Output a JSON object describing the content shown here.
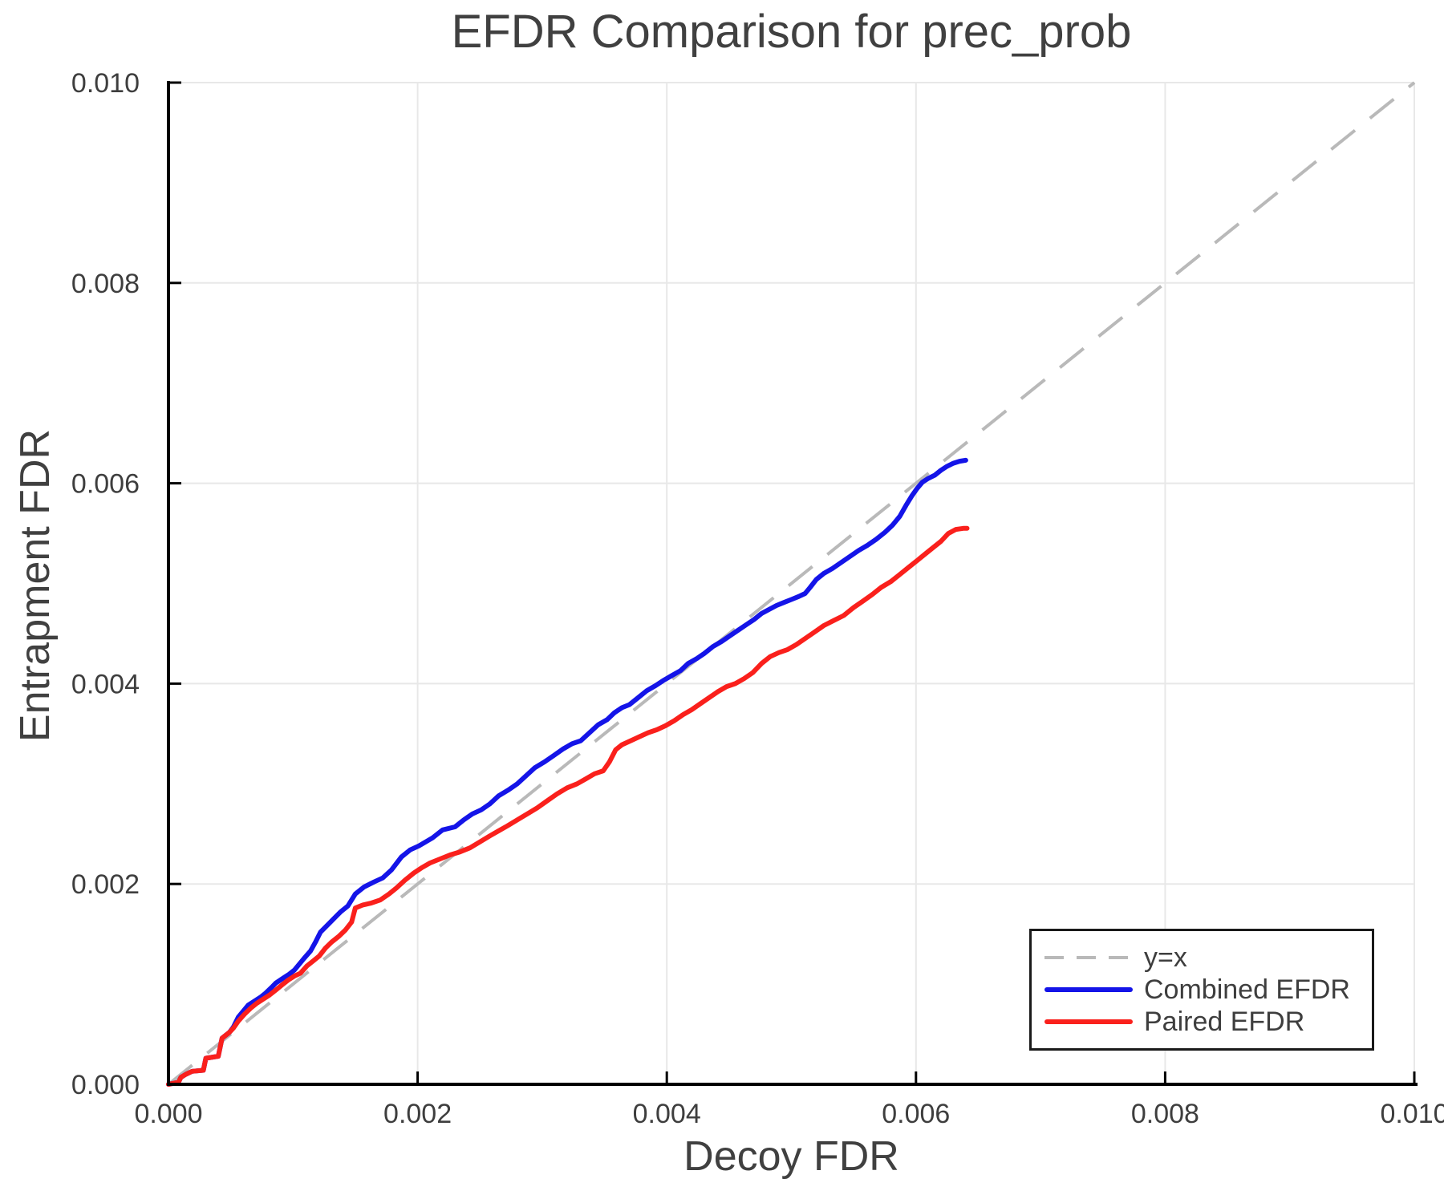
{
  "chart_data": {
    "type": "line",
    "title": "EFDR Comparison for prec_prob",
    "xlabel": "Decoy FDR",
    "ylabel": "Entrapment FDR",
    "xlim": [
      0.0,
      0.01
    ],
    "ylim": [
      0.0,
      0.01
    ],
    "grid": true,
    "background": "#ffffff",
    "axis_color": "#000000",
    "gridline_color": "#e8e8e8",
    "tick_label_color": "#3e3e3e",
    "x_ticks": {
      "values": [
        0.0,
        0.002,
        0.004,
        0.006,
        0.008,
        0.01
      ],
      "labels": [
        "0.000",
        "0.002",
        "0.004",
        "0.006",
        "0.008",
        "0.010"
      ]
    },
    "y_ticks": {
      "values": [
        0.0,
        0.002,
        0.004,
        0.006,
        0.008,
        0.01
      ],
      "labels": [
        "0.000",
        "0.002",
        "0.004",
        "0.006",
        "0.008",
        "0.010"
      ]
    },
    "legend": {
      "position": "lower right",
      "border_color": "#1a1a1a"
    },
    "reference_line": {
      "label": "y=x",
      "style": "dashed",
      "color": "#b9b9b9",
      "from": [
        0.0,
        0.0
      ],
      "to": [
        0.01,
        0.01
      ]
    },
    "series": [
      {
        "name": "Combined EFDR",
        "color": "#1414e8",
        "points": [
          [
            0.0,
            0.0
          ],
          [
            8e-05,
            2e-05
          ],
          [
            0.0001,
            7e-05
          ],
          [
            0.00014,
            0.0001
          ],
          [
            0.00019,
            0.00013
          ],
          [
            0.00028,
            0.00014
          ],
          [
            0.0003,
            0.00026
          ],
          [
            0.0004,
            0.00028
          ],
          [
            0.00043,
            0.00046
          ],
          [
            0.00049,
            0.00052
          ],
          [
            0.00052,
            0.00057
          ],
          [
            0.00056,
            0.00067
          ],
          [
            0.0006,
            0.00073
          ],
          [
            0.00064,
            0.00079
          ],
          [
            0.00069,
            0.00083
          ],
          [
            0.00074,
            0.00087
          ],
          [
            0.00078,
            0.00091
          ],
          [
            0.00083,
            0.00097
          ],
          [
            0.00086,
            0.00101
          ],
          [
            0.00092,
            0.00106
          ],
          [
            0.00097,
            0.0011
          ],
          [
            0.00101,
            0.00114
          ],
          [
            0.00105,
            0.0012
          ],
          [
            0.00109,
            0.00126
          ],
          [
            0.00114,
            0.00133
          ],
          [
            0.00118,
            0.00142
          ],
          [
            0.00122,
            0.00152
          ],
          [
            0.0013,
            0.00162
          ],
          [
            0.00138,
            0.00172
          ],
          [
            0.00144,
            0.00178
          ],
          [
            0.0015,
            0.0019
          ],
          [
            0.00157,
            0.00197
          ],
          [
            0.00165,
            0.00202
          ],
          [
            0.00172,
            0.00206
          ],
          [
            0.00179,
            0.00214
          ],
          [
            0.00187,
            0.00227
          ],
          [
            0.00194,
            0.00234
          ],
          [
            0.00201,
            0.00238
          ],
          [
            0.00212,
            0.00246
          ],
          [
            0.0022,
            0.00254
          ],
          [
            0.0023,
            0.00257
          ],
          [
            0.00237,
            0.00264
          ],
          [
            0.00244,
            0.0027
          ],
          [
            0.00251,
            0.00274
          ],
          [
            0.00258,
            0.0028
          ],
          [
            0.00265,
            0.00288
          ],
          [
            0.00273,
            0.00294
          ],
          [
            0.0028,
            0.003
          ],
          [
            0.00287,
            0.00308
          ],
          [
            0.00294,
            0.00316
          ],
          [
            0.00302,
            0.00322
          ],
          [
            0.00309,
            0.00328
          ],
          [
            0.00317,
            0.00335
          ],
          [
            0.00324,
            0.0034
          ],
          [
            0.00331,
            0.00343
          ],
          [
            0.00338,
            0.00351
          ],
          [
            0.00345,
            0.00359
          ],
          [
            0.00352,
            0.00364
          ],
          [
            0.00358,
            0.00371
          ],
          [
            0.00364,
            0.00376
          ],
          [
            0.0037,
            0.00379
          ],
          [
            0.00377,
            0.00386
          ],
          [
            0.00384,
            0.00393
          ],
          [
            0.00391,
            0.00398
          ],
          [
            0.00397,
            0.00403
          ],
          [
            0.00404,
            0.00408
          ],
          [
            0.00411,
            0.00413
          ],
          [
            0.00417,
            0.0042
          ],
          [
            0.00424,
            0.00425
          ],
          [
            0.0043,
            0.0043
          ],
          [
            0.00437,
            0.00437
          ],
          [
            0.00444,
            0.00442
          ],
          [
            0.00451,
            0.00448
          ],
          [
            0.00458,
            0.00454
          ],
          [
            0.00464,
            0.00459
          ],
          [
            0.0047,
            0.00464
          ],
          [
            0.00476,
            0.0047
          ],
          [
            0.00482,
            0.00474
          ],
          [
            0.00488,
            0.00478
          ],
          [
            0.00494,
            0.00481
          ],
          [
            0.005,
            0.00484
          ],
          [
            0.00506,
            0.00487
          ],
          [
            0.00511,
            0.0049
          ],
          [
            0.00515,
            0.00496
          ],
          [
            0.0052,
            0.00504
          ],
          [
            0.00526,
            0.0051
          ],
          [
            0.00533,
            0.00515
          ],
          [
            0.0054,
            0.00521
          ],
          [
            0.00547,
            0.00527
          ],
          [
            0.00554,
            0.00533
          ],
          [
            0.00561,
            0.00538
          ],
          [
            0.00568,
            0.00544
          ],
          [
            0.00575,
            0.00551
          ],
          [
            0.00581,
            0.00558
          ],
          [
            0.00587,
            0.00567
          ],
          [
            0.00592,
            0.00578
          ],
          [
            0.00597,
            0.00588
          ],
          [
            0.00601,
            0.00595
          ],
          [
            0.00605,
            0.00601
          ],
          [
            0.0061,
            0.00605
          ],
          [
            0.00615,
            0.00608
          ],
          [
            0.0062,
            0.00613
          ],
          [
            0.00625,
            0.00617
          ],
          [
            0.0063,
            0.0062
          ],
          [
            0.00635,
            0.00622
          ],
          [
            0.0064,
            0.00623
          ]
        ]
      },
      {
        "name": "Paired EFDR",
        "color": "#fa201c",
        "points": [
          [
            0.0,
            0.0
          ],
          [
            8e-05,
            2e-05
          ],
          [
            0.0001,
            7e-05
          ],
          [
            0.00014,
            0.0001
          ],
          [
            0.00019,
            0.00013
          ],
          [
            0.00028,
            0.00014
          ],
          [
            0.0003,
            0.00026
          ],
          [
            0.0004,
            0.00028
          ],
          [
            0.00043,
            0.00046
          ],
          [
            0.00049,
            0.00052
          ],
          [
            0.00052,
            0.00056
          ],
          [
            0.00056,
            0.00063
          ],
          [
            0.00061,
            0.0007
          ],
          [
            0.00066,
            0.00076
          ],
          [
            0.00071,
            0.00081
          ],
          [
            0.00076,
            0.00085
          ],
          [
            0.00081,
            0.00089
          ],
          [
            0.00086,
            0.00094
          ],
          [
            0.00091,
            0.00099
          ],
          [
            0.00096,
            0.00104
          ],
          [
            0.00101,
            0.00108
          ],
          [
            0.00106,
            0.00111
          ],
          [
            0.00111,
            0.00118
          ],
          [
            0.00116,
            0.00123
          ],
          [
            0.00121,
            0.00128
          ],
          [
            0.00126,
            0.00136
          ],
          [
            0.00131,
            0.00142
          ],
          [
            0.00137,
            0.00148
          ],
          [
            0.00142,
            0.00154
          ],
          [
            0.00147,
            0.00162
          ],
          [
            0.0015,
            0.00176
          ],
          [
            0.00156,
            0.00179
          ],
          [
            0.00163,
            0.00181
          ],
          [
            0.0017,
            0.00184
          ],
          [
            0.00177,
            0.0019
          ],
          [
            0.00183,
            0.00196
          ],
          [
            0.0019,
            0.00204
          ],
          [
            0.00197,
            0.00211
          ],
          [
            0.00203,
            0.00216
          ],
          [
            0.0021,
            0.00221
          ],
          [
            0.00218,
            0.00225
          ],
          [
            0.00226,
            0.00229
          ],
          [
            0.00234,
            0.00232
          ],
          [
            0.00242,
            0.00236
          ],
          [
            0.0025,
            0.00242
          ],
          [
            0.00258,
            0.00248
          ],
          [
            0.00265,
            0.00253
          ],
          [
            0.00272,
            0.00258
          ],
          [
            0.0028,
            0.00264
          ],
          [
            0.00288,
            0.0027
          ],
          [
            0.00296,
            0.00276
          ],
          [
            0.00304,
            0.00283
          ],
          [
            0.00312,
            0.0029
          ],
          [
            0.0032,
            0.00296
          ],
          [
            0.00328,
            0.003
          ],
          [
            0.00335,
            0.00305
          ],
          [
            0.00342,
            0.0031
          ],
          [
            0.00349,
            0.00313
          ],
          [
            0.00354,
            0.00322
          ],
          [
            0.00359,
            0.00334
          ],
          [
            0.00364,
            0.00339
          ],
          [
            0.00371,
            0.00343
          ],
          [
            0.00378,
            0.00347
          ],
          [
            0.00385,
            0.00351
          ],
          [
            0.00392,
            0.00354
          ],
          [
            0.00399,
            0.00358
          ],
          [
            0.00406,
            0.00363
          ],
          [
            0.00413,
            0.00369
          ],
          [
            0.0042,
            0.00374
          ],
          [
            0.00427,
            0.0038
          ],
          [
            0.00434,
            0.00386
          ],
          [
            0.00441,
            0.00392
          ],
          [
            0.00448,
            0.00397
          ],
          [
            0.00455,
            0.004
          ],
          [
            0.00462,
            0.00405
          ],
          [
            0.00469,
            0.00411
          ],
          [
            0.00476,
            0.0042
          ],
          [
            0.00483,
            0.00427
          ],
          [
            0.0049,
            0.00431
          ],
          [
            0.00497,
            0.00434
          ],
          [
            0.00504,
            0.00439
          ],
          [
            0.00511,
            0.00445
          ],
          [
            0.00518,
            0.00451
          ],
          [
            0.00526,
            0.00458
          ],
          [
            0.00534,
            0.00463
          ],
          [
            0.00542,
            0.00468
          ],
          [
            0.0055,
            0.00476
          ],
          [
            0.00557,
            0.00482
          ],
          [
            0.00565,
            0.00489
          ],
          [
            0.00572,
            0.00496
          ],
          [
            0.0058,
            0.00502
          ],
          [
            0.00587,
            0.00509
          ],
          [
            0.00594,
            0.00516
          ],
          [
            0.00601,
            0.00523
          ],
          [
            0.00608,
            0.0053
          ],
          [
            0.00614,
            0.00536
          ],
          [
            0.0062,
            0.00542
          ],
          [
            0.00626,
            0.0055
          ],
          [
            0.00632,
            0.00554
          ],
          [
            0.00638,
            0.00555
          ],
          [
            0.00641,
            0.00555
          ]
        ]
      }
    ]
  }
}
